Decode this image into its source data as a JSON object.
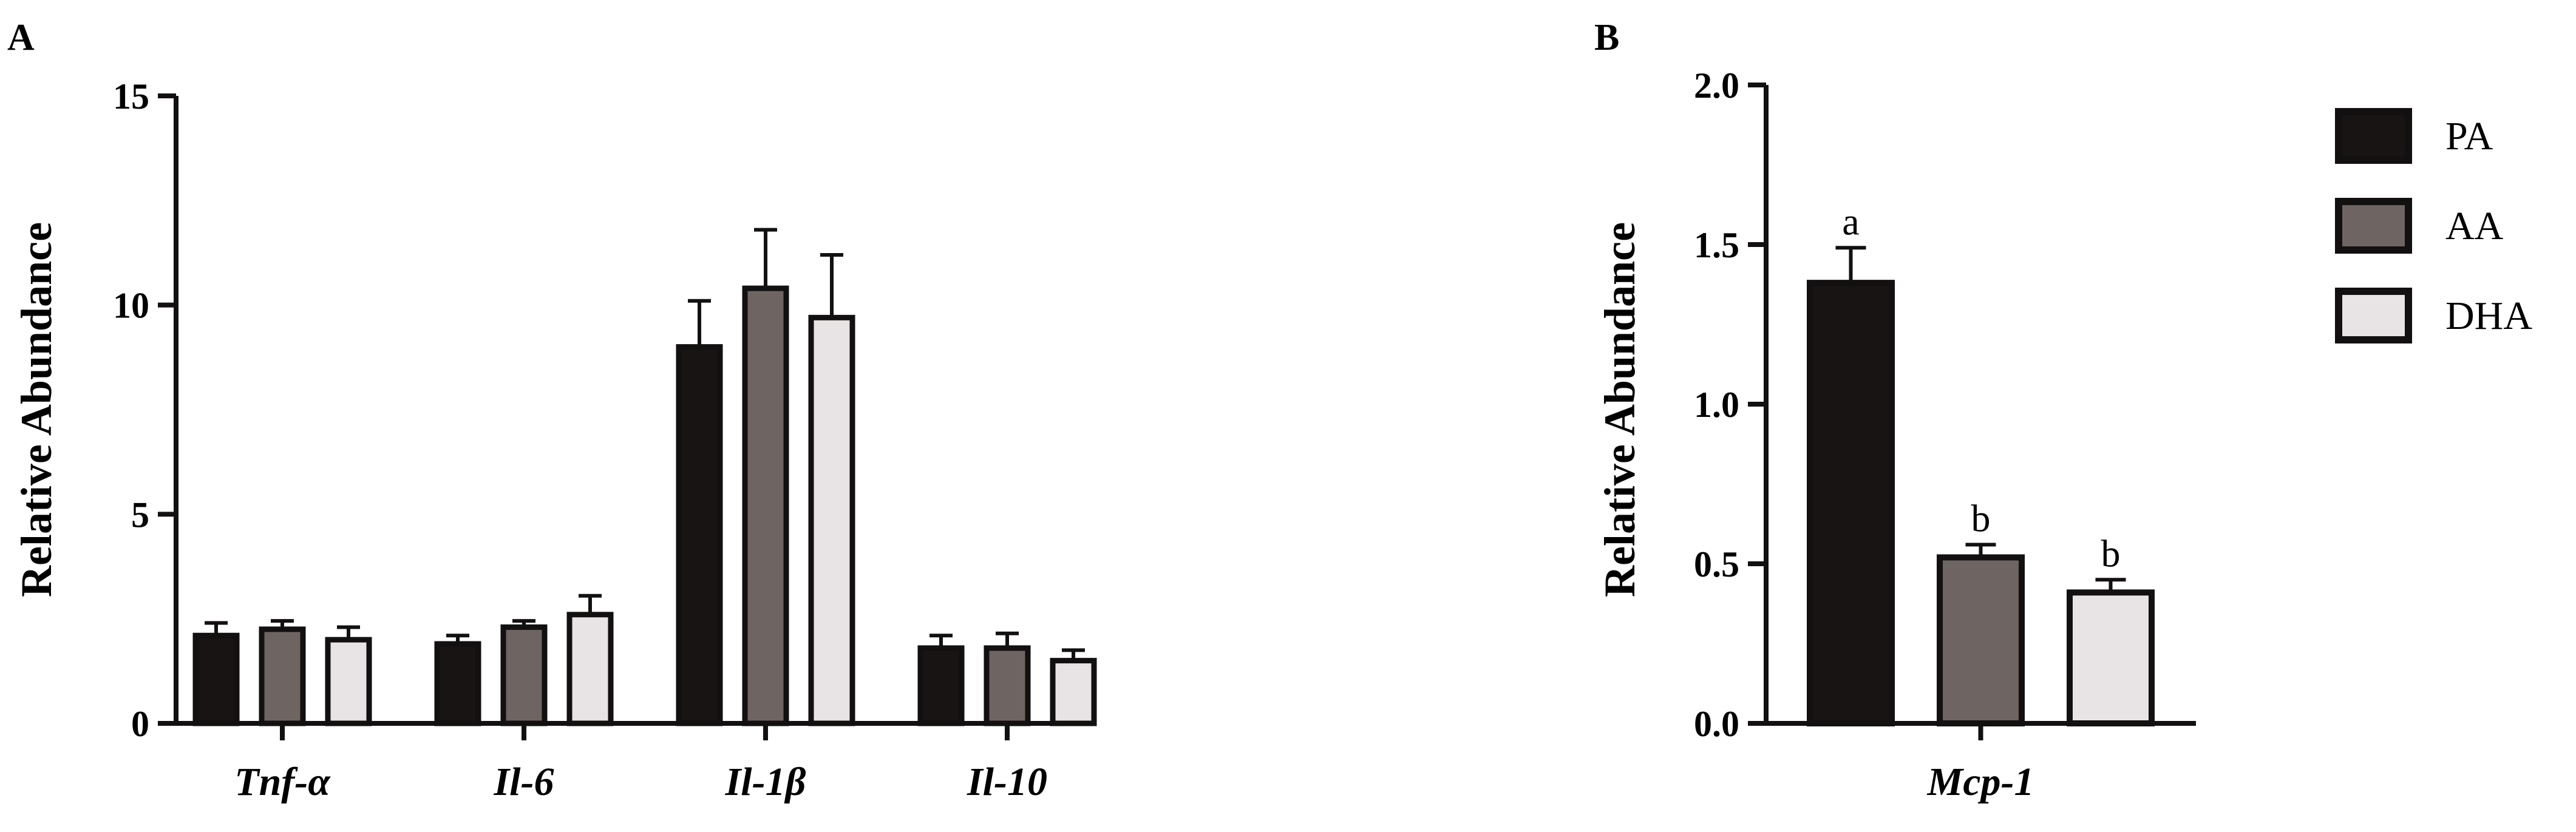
{
  "colors": {
    "PA": "#171413",
    "AA": "#6e6461",
    "DHA": "#e8e3e4",
    "stroke": "#121010"
  },
  "legend": {
    "placement": "right",
    "items": [
      {
        "label": "PA",
        "color": "#171413"
      },
      {
        "label": "AA",
        "color": "#6e6461"
      },
      {
        "label": "DHA",
        "color": "#e8e3e4"
      }
    ]
  },
  "chart_data": [
    {
      "panel": "A",
      "type": "bar",
      "ylabel": "Relative Abundance",
      "xlabel": "",
      "ylim": [
        0,
        15
      ],
      "yticks": [
        0,
        5,
        10,
        15
      ],
      "categories": [
        "Tnf-α",
        "Il-6",
        "Il-1β",
        "Il-10"
      ],
      "series": [
        {
          "name": "PA",
          "values": [
            2.1,
            1.9,
            9.0,
            1.8
          ],
          "errors": [
            0.3,
            0.2,
            1.1,
            0.3
          ]
        },
        {
          "name": "AA",
          "values": [
            2.25,
            2.3,
            10.4,
            1.8
          ],
          "errors": [
            0.2,
            0.15,
            1.4,
            0.35
          ]
        },
        {
          "name": "DHA",
          "values": [
            2.0,
            2.6,
            9.7,
            1.5
          ],
          "errors": [
            0.3,
            0.45,
            1.5,
            0.25
          ]
        }
      ]
    },
    {
      "panel": "B",
      "type": "bar",
      "ylabel": "Relative Abundance",
      "xlabel": "",
      "ylim": [
        0,
        2.0
      ],
      "yticks": [
        "0.0",
        "0.5",
        "1.0",
        "1.5",
        "2.0"
      ],
      "categories": [
        "Mcp-1"
      ],
      "series": [
        {
          "name": "PA",
          "values": [
            1.38
          ],
          "errors": [
            0.11
          ],
          "annotations": [
            "a"
          ]
        },
        {
          "name": "AA",
          "values": [
            0.52
          ],
          "errors": [
            0.04
          ],
          "annotations": [
            "b"
          ]
        },
        {
          "name": "DHA",
          "values": [
            0.41
          ],
          "errors": [
            0.04
          ],
          "annotations": [
            "b"
          ]
        }
      ]
    }
  ]
}
